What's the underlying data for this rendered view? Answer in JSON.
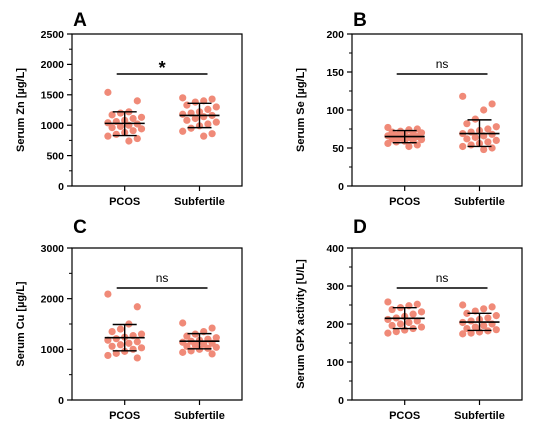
{
  "colors": {
    "point": "#F08A78",
    "bar": "#000000",
    "axis": "#000000"
  },
  "chart_data": [
    {
      "type": "scatter",
      "panel": "A",
      "ylabel": "Serum Zn [µg/L]",
      "ylim": [
        0,
        2500
      ],
      "yticks": [
        0,
        500,
        1000,
        1500,
        2000,
        2500
      ],
      "categories": [
        "PCOS",
        "Subfertile"
      ],
      "significance": "*",
      "series": [
        {
          "mean": 1030,
          "sd_low": 830,
          "sd_high": 1220,
          "points": [
            1540,
            1400,
            1220,
            1200,
            1170,
            1130,
            1110,
            1080,
            1060,
            1040,
            1020,
            1000,
            980,
            960,
            940,
            910,
            880,
            850,
            820,
            780,
            740
          ]
        },
        {
          "mean": 1160,
          "sd_low": 960,
          "sd_high": 1360,
          "points": [
            1450,
            1430,
            1400,
            1380,
            1330,
            1300,
            1260,
            1220,
            1200,
            1180,
            1160,
            1140,
            1110,
            1080,
            1050,
            1020,
            990,
            950,
            900,
            860,
            820
          ]
        }
      ]
    },
    {
      "type": "scatter",
      "panel": "B",
      "ylabel": "Serum Se [µg/L]",
      "ylim": [
        0,
        200
      ],
      "yticks": [
        0,
        50,
        100,
        150,
        200
      ],
      "categories": [
        "PCOS",
        "Subfertile"
      ],
      "significance": "ns",
      "series": [
        {
          "mean": 65,
          "sd_low": 57,
          "sd_high": 73,
          "points": [
            77,
            75,
            74,
            72,
            71,
            70,
            69,
            68,
            67,
            66,
            65,
            64,
            63,
            62,
            61,
            60,
            59,
            58,
            56,
            54,
            52
          ]
        },
        {
          "mean": 69,
          "sd_low": 52,
          "sd_high": 87,
          "points": [
            118,
            108,
            100,
            88,
            82,
            78,
            75,
            73,
            71,
            69,
            68,
            66,
            64,
            62,
            60,
            58,
            56,
            54,
            52,
            50,
            48
          ]
        }
      ]
    },
    {
      "type": "scatter",
      "panel": "C",
      "ylabel": "Serum Cu [µg/L]",
      "ylim": [
        0,
        3000
      ],
      "yticks": [
        0,
        1000,
        2000,
        3000
      ],
      "categories": [
        "PCOS",
        "Subfertile"
      ],
      "significance": "ns",
      "series": [
        {
          "mean": 1230,
          "sd_low": 970,
          "sd_high": 1490,
          "points": [
            2090,
            1840,
            1500,
            1400,
            1350,
            1300,
            1270,
            1240,
            1210,
            1180,
            1150,
            1120,
            1090,
            1060,
            1030,
            1000,
            960,
            920,
            880,
            830
          ]
        },
        {
          "mean": 1160,
          "sd_low": 1010,
          "sd_high": 1310,
          "points": [
            1520,
            1420,
            1350,
            1300,
            1260,
            1230,
            1200,
            1180,
            1160,
            1140,
            1120,
            1100,
            1080,
            1060,
            1040,
            1020,
            1000,
            970,
            940,
            910
          ]
        }
      ]
    },
    {
      "type": "scatter",
      "panel": "D",
      "ylabel": "Serum GPX activity [U/L]",
      "ylim": [
        0,
        400
      ],
      "yticks": [
        0,
        100,
        200,
        300,
        400
      ],
      "categories": [
        "PCOS",
        "Subfertile"
      ],
      "significance": "ns",
      "series": [
        {
          "mean": 215,
          "sd_low": 188,
          "sd_high": 243,
          "points": [
            258,
            252,
            248,
            243,
            238,
            232,
            226,
            220,
            216,
            212,
            208,
            204,
            200,
            196,
            192,
            188,
            184,
            180,
            176
          ]
        },
        {
          "mean": 205,
          "sd_low": 183,
          "sd_high": 228,
          "points": [
            250,
            245,
            240,
            234,
            228,
            222,
            216,
            212,
            208,
            204,
            200,
            196,
            192,
            188,
            185,
            182,
            179,
            176,
            174
          ]
        }
      ]
    }
  ]
}
